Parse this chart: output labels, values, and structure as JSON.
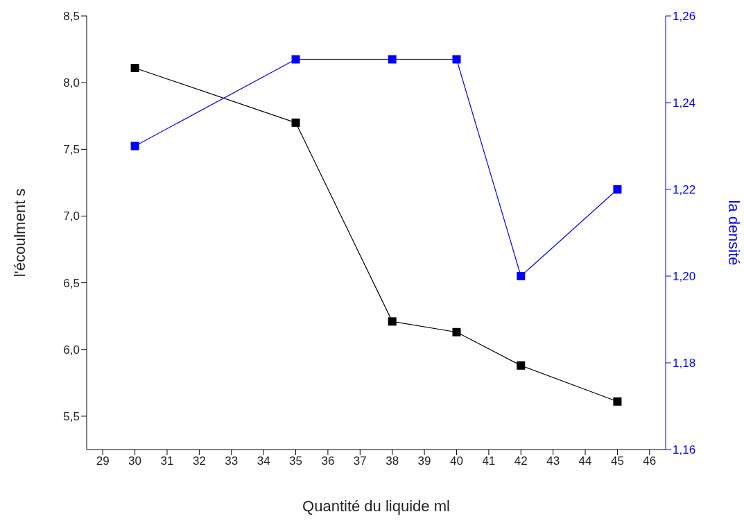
{
  "chart_data": {
    "type": "line",
    "xlabel": "Quantité du liquide ml",
    "ylabel": "l'écoulment s",
    "y2label": "la densité",
    "x": [
      30,
      35,
      38,
      40,
      42,
      45
    ],
    "series": [
      {
        "color": "#000000",
        "values": [
          8.11,
          7.7,
          6.21,
          6.13,
          5.88,
          5.61
        ]
      },
      {
        "color": "#0000ff",
        "values": [
          1.23,
          1.25,
          1.25,
          1.25,
          1.2,
          1.22
        ],
        "axis": "y2"
      }
    ],
    "xlim": [
      28.5,
      46.5
    ],
    "xticks": [
      29,
      30,
      31,
      32,
      33,
      34,
      35,
      36,
      37,
      38,
      39,
      40,
      41,
      42,
      43,
      44,
      45,
      46
    ],
    "ylim": [
      5.25,
      8.5
    ],
    "yticks": [
      {
        "value": 5.5,
        "label": "5,5"
      },
      {
        "value": 6,
        "label": "6,0"
      },
      {
        "value": 6.5,
        "label": "6,5"
      },
      {
        "value": 7,
        "label": "7,0"
      },
      {
        "value": 7.5,
        "label": "7,5"
      },
      {
        "value": 8,
        "label": "8,0"
      },
      {
        "value": 8.5,
        "label": "8,5"
      }
    ],
    "y2lim": [
      1.16,
      1.26
    ],
    "y2ticks": [
      {
        "value": 1.16,
        "label": "1,16"
      },
      {
        "value": 1.18,
        "label": "1,18"
      },
      {
        "value": 1.2,
        "label": "1,20"
      },
      {
        "value": 1.22,
        "label": "1,22"
      },
      {
        "value": 1.24,
        "label": "1,24"
      },
      {
        "value": 1.26,
        "label": "1,26"
      }
    ],
    "marker": "square",
    "line_style": "solid",
    "grid": false,
    "legend": false
  }
}
